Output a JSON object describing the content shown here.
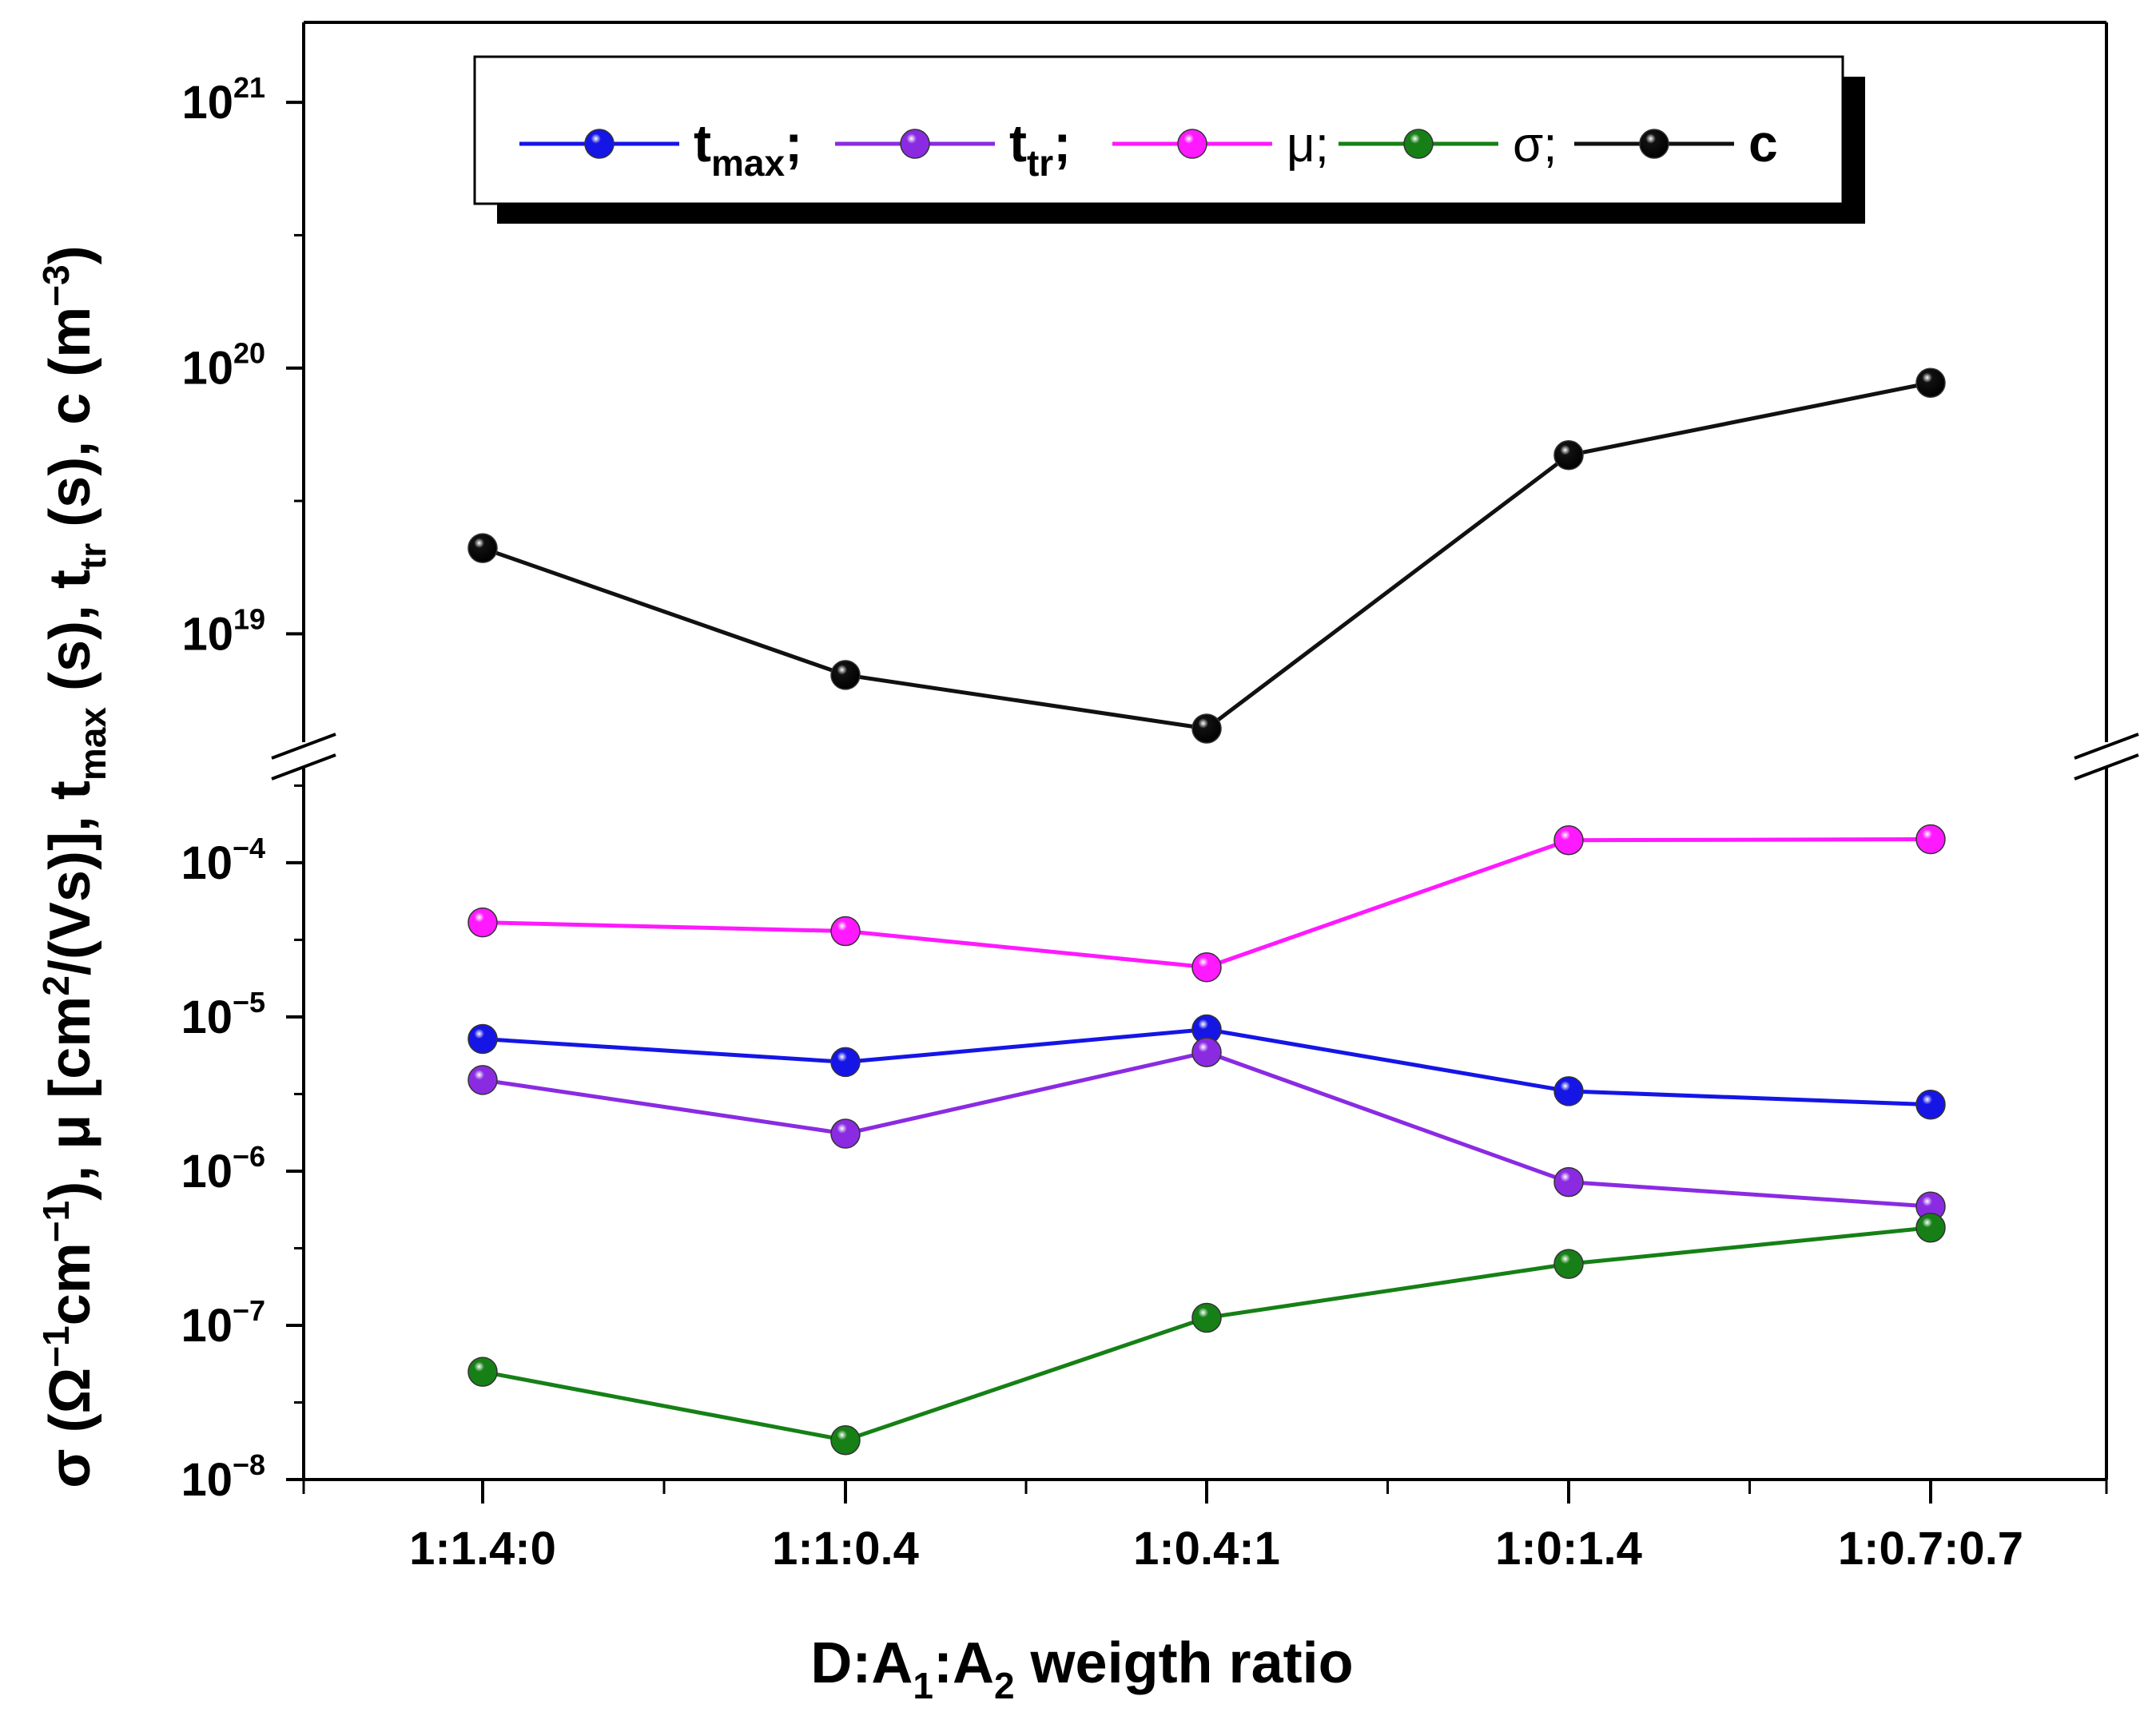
{
  "chart_data": {
    "type": "line",
    "xlabel": {
      "main": "D:A",
      "sub1": "1",
      "mid": ":A",
      "sub2": "2",
      "tail": " weigth ratio"
    },
    "ylabel": {
      "part1": "σ (Ω",
      "sup1": "−1",
      "part2": "cm",
      "sup2": "−1",
      "part3": "), μ [cm",
      "sup3": "2",
      "part4": "/(Vs)], t",
      "sub1": "max",
      "part5": " (s), t",
      "sub2": "tr",
      "part6": " (s), c (m",
      "sup4": "−3",
      "part7": ")"
    },
    "categories": [
      "1:1.4:0",
      "1:1:0.4",
      "1:0.4:1",
      "1:0:1.4",
      "1:0.7:0.7"
    ],
    "y_scale": "log",
    "y_broken": true,
    "lower_ylim": [
      1e-08,
      0.0005
    ],
    "upper_ylim": [
      3.5e+18,
      2e+21
    ],
    "lower_ticks": [
      {
        "base": "10",
        "exp": "−8",
        "value": 1e-08
      },
      {
        "base": "10",
        "exp": "−7",
        "value": 1e-07
      },
      {
        "base": "10",
        "exp": "−6",
        "value": 1e-06
      },
      {
        "base": "10",
        "exp": "−5",
        "value": 1e-05
      },
      {
        "base": "10",
        "exp": "−4",
        "value": 0.0001
      }
    ],
    "upper_ticks": [
      {
        "base": "10",
        "exp": "19",
        "value": 1e+19
      },
      {
        "base": "10",
        "exp": "20",
        "value": 1e+20
      },
      {
        "base": "10",
        "exp": "21",
        "value": 1e+21
      }
    ],
    "series": [
      {
        "key": "tmax",
        "name": "t",
        "sub": "max",
        "suffix": ";",
        "color": "#1515e6",
        "panel": "lower",
        "values": [
          7.2e-06,
          5.1e-06,
          8.3e-06,
          3.3e-06,
          2.7e-06
        ]
      },
      {
        "key": "ttr",
        "name": "t",
        "sub": "tr",
        "suffix": ";",
        "color": "#8a2be2",
        "panel": "lower",
        "values": [
          3.9e-06,
          1.75e-06,
          5.9e-06,
          8.5e-07,
          5.9e-07
        ]
      },
      {
        "key": "mu",
        "name": "μ;",
        "sub": "",
        "suffix": "",
        "color": "#ff19ff",
        "panel": "lower",
        "values": [
          4.1e-05,
          3.6e-05,
          2.1e-05,
          0.00014,
          0.000142
        ]
      },
      {
        "key": "sigma",
        "name": "σ;",
        "sub": "",
        "suffix": "",
        "color": "#168016",
        "panel": "lower",
        "values": [
          5e-08,
          1.8e-08,
          1.12e-07,
          2.5e-07,
          4.3e-07
        ]
      },
      {
        "key": "c",
        "name": "c",
        "sub": "",
        "suffix": "",
        "color": "#111111",
        "panel": "upper",
        "values": [
          2.1e+19,
          7e+18,
          4.4e+18,
          4.7e+19,
          8.8e+19
        ]
      }
    ]
  }
}
